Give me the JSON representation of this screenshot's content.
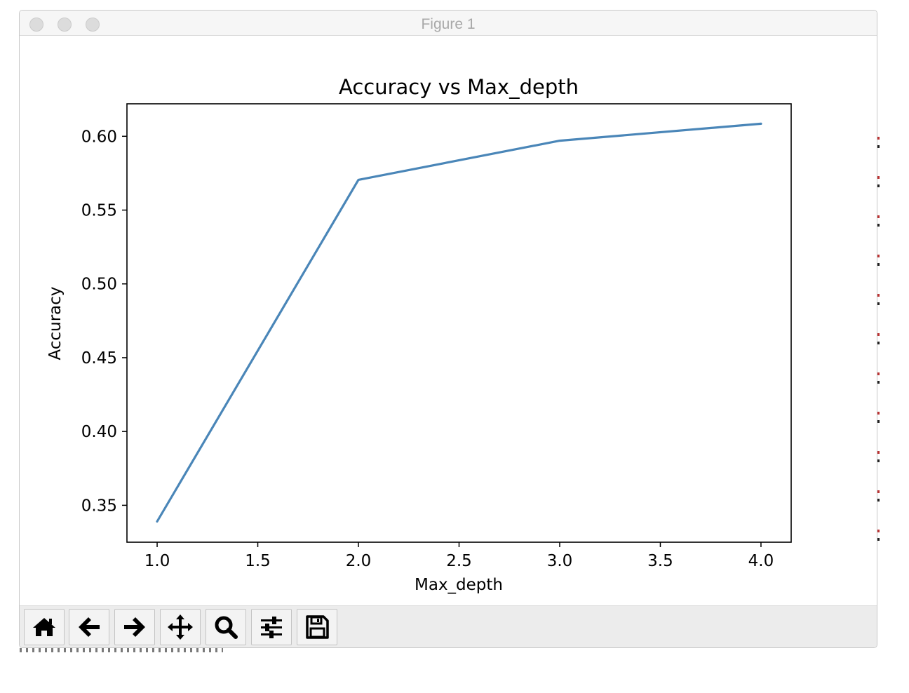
{
  "window": {
    "title": "Figure 1"
  },
  "chart_data": {
    "type": "line",
    "title": "Accuracy vs Max_depth",
    "xlabel": "Max_depth",
    "ylabel": "Accuracy",
    "x": [
      1.0,
      2.0,
      3.0,
      4.0
    ],
    "series": [
      {
        "values": [
          0.339,
          0.5705,
          0.597,
          0.6085
        ],
        "color": "#4a86b8"
      }
    ],
    "xlim": [
      0.85,
      4.15
    ],
    "ylim": [
      0.325,
      0.622
    ],
    "xticks": [
      1.0,
      1.5,
      2.0,
      2.5,
      3.0,
      3.5,
      4.0
    ],
    "xtick_labels": [
      "1.0",
      "1.5",
      "2.0",
      "2.5",
      "3.0",
      "3.5",
      "4.0"
    ],
    "yticks": [
      0.35,
      0.4,
      0.45,
      0.5,
      0.55,
      0.6
    ],
    "ytick_labels": [
      "0.35",
      "0.40",
      "0.45",
      "0.50",
      "0.55",
      "0.60"
    ],
    "grid": false,
    "legend": "none"
  },
  "toolbar": {
    "buttons": [
      {
        "name": "home-button",
        "icon": "home-icon"
      },
      {
        "name": "back-button",
        "icon": "arrow-left-icon"
      },
      {
        "name": "forward-button",
        "icon": "arrow-right-icon"
      },
      {
        "name": "pan-button",
        "icon": "move-icon"
      },
      {
        "name": "zoom-button",
        "icon": "magnifier-icon"
      },
      {
        "name": "configure-subplots-button",
        "icon": "sliders-icon"
      },
      {
        "name": "save-button",
        "icon": "floppy-disk-icon"
      }
    ]
  }
}
